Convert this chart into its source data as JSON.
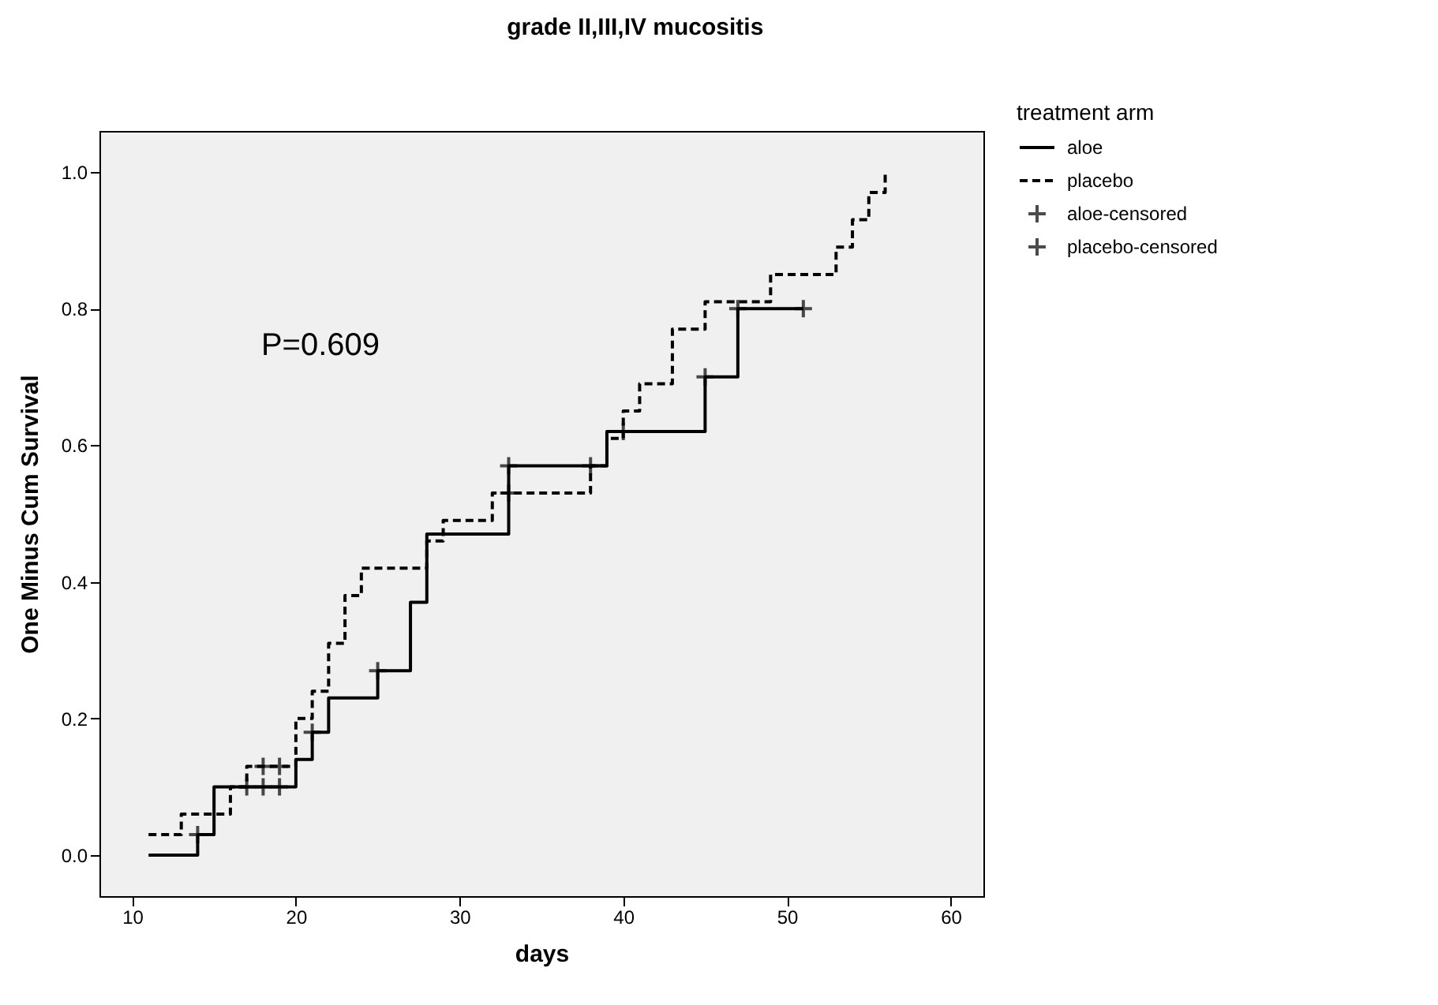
{
  "chart_data": {
    "type": "step",
    "title": "grade II,III,IV mucositis",
    "xlabel": "days",
    "ylabel": "One Minus Cum Survival",
    "legend_title": "treatment arm",
    "legend": "top right",
    "grid": false,
    "annotations": [
      "P=0.609"
    ],
    "xlim": [
      8,
      62
    ],
    "xticks": [
      10,
      20,
      30,
      40,
      50,
      60
    ],
    "ylim": [
      -0.06,
      1.06
    ],
    "yticks": [
      {
        "value": 0,
        "label": "0.0"
      },
      {
        "value": 0.2,
        "label": "0.2"
      },
      {
        "value": 0.4,
        "label": "0.4"
      },
      {
        "value": 0.6,
        "label": "0.6"
      },
      {
        "value": 0.8,
        "label": "0.8"
      },
      {
        "value": 1,
        "label": "1.0"
      }
    ],
    "series": [
      {
        "name": "aloe",
        "color": "#000000",
        "line_style": "solid",
        "x": [
          11,
          14,
          15,
          20,
          21,
          22,
          25,
          27,
          28,
          33,
          39,
          45,
          47,
          51
        ],
        "values": [
          0,
          0.03,
          0.1,
          0.14,
          0.18,
          0.23,
          0.27,
          0.37,
          0.47,
          0.57,
          0.62,
          0.7,
          0.8,
          0.8
        ]
      },
      {
        "name": "placebo",
        "color": "#000000",
        "line_style": "dashed",
        "x": [
          11,
          13,
          16,
          17,
          20,
          21,
          22,
          23,
          24,
          28,
          29,
          32,
          38,
          39,
          40,
          41,
          43,
          45,
          49,
          53,
          54,
          55,
          56
        ],
        "values": [
          0.03,
          0.06,
          0.1,
          0.13,
          0.2,
          0.24,
          0.31,
          0.38,
          0.42,
          0.46,
          0.49,
          0.53,
          0.57,
          0.61,
          0.65,
          0.69,
          0.77,
          0.81,
          0.85,
          0.89,
          0.93,
          0.97,
          1.0
        ]
      },
      {
        "name": "aloe-censored",
        "type": "scatter",
        "color": "#000000",
        "marker": "cross",
        "x": [
          14,
          17,
          18,
          19,
          21,
          25,
          33,
          38,
          40,
          45,
          47,
          51
        ],
        "values": [
          0.03,
          0.1,
          0.1,
          0.1,
          0.18,
          0.27,
          0.57,
          0.57,
          0.62,
          0.7,
          0.8,
          0.8
        ]
      },
      {
        "name": "placebo-censored",
        "type": "scatter",
        "color": "#000000",
        "marker": "cross",
        "x": [
          18,
          19,
          33
        ],
        "values": [
          0.13,
          0.13,
          0.53
        ]
      }
    ]
  }
}
